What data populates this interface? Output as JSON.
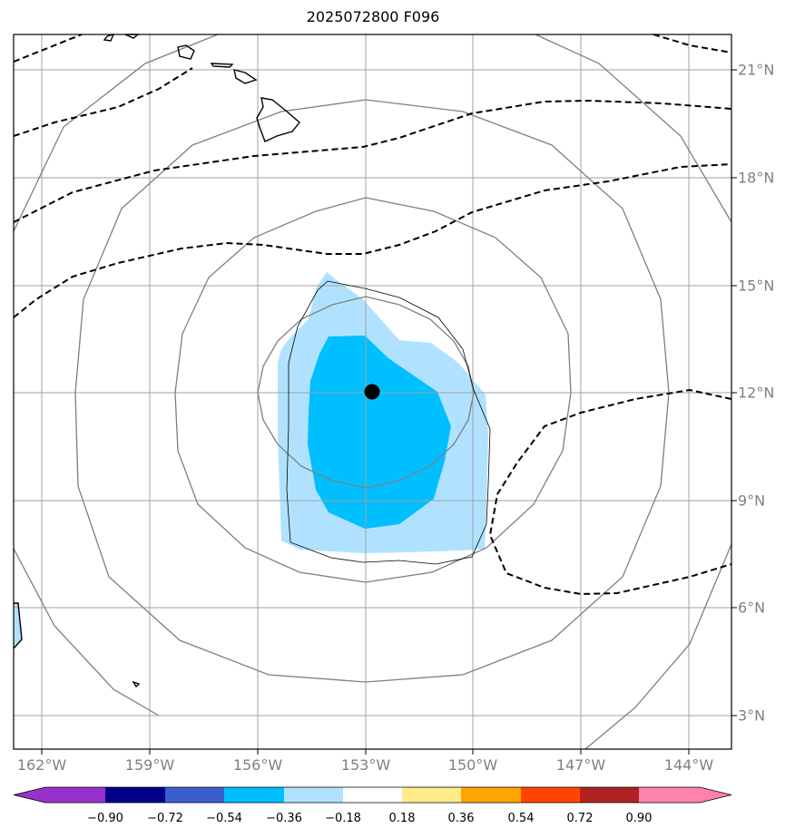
{
  "title": "2025072800 F096",
  "map": {
    "lon_labels": [
      "162°W",
      "159°W",
      "156°W",
      "153°W",
      "150°W",
      "147°W",
      "144°W"
    ],
    "lat_labels": [
      "21°N",
      "18°N",
      "15°N",
      "12°N",
      "9°N",
      "6°N",
      "3°N"
    ],
    "center_marker": {
      "lat": 12.0,
      "lon": "152.8°W"
    }
  },
  "colorbar": {
    "tick_labels": [
      "−0.90",
      "−0.72",
      "−0.54",
      "−0.36",
      "−0.18",
      "0.18",
      "0.36",
      "0.54",
      "0.72",
      "0.90"
    ],
    "colors": [
      "#9932cc",
      "#00008b",
      "#3a5fcd",
      "#00bfff",
      "#b0e2ff",
      "#ffffff",
      "#ffec8b",
      "#ffa500",
      "#ff4500",
      "#b22222",
      "#ff82ab"
    ]
  }
}
